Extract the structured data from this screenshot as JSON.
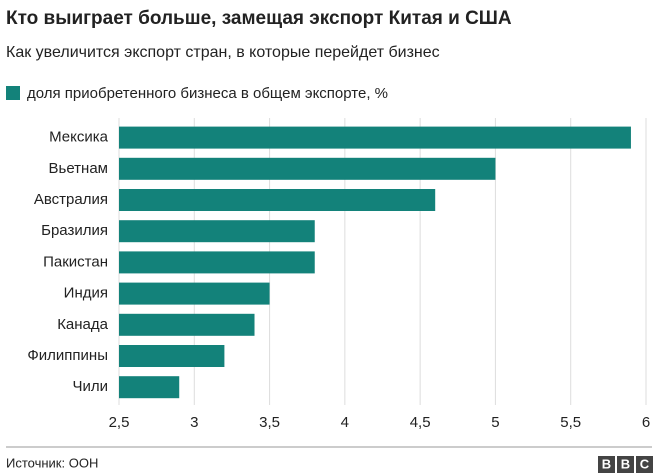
{
  "chart_data": {
    "type": "barh",
    "title": "Кто выиграет больше, замещая экспорт Китая и США",
    "subtitle": "Как увеличится экспорт стран, в которые перейдет бизнес",
    "categories": [
      "Мексика",
      "Вьетнам",
      "Австралия",
      "Бразилия",
      "Пакистан",
      "Индия",
      "Канада",
      "Филиппины",
      "Чили"
    ],
    "series": [
      {
        "name": "доля приобретенного бизнеса в общем экспорте, %",
        "color": "#13827a",
        "values": [
          5.9,
          5.0,
          4.6,
          3.8,
          3.8,
          3.5,
          3.4,
          3.2,
          2.9
        ]
      }
    ],
    "xlim": [
      2.5,
      6
    ],
    "xticks": [
      {
        "value": 2.5,
        "label": "2,5"
      },
      3,
      {
        "value": 3.5,
        "label": "3,5"
      },
      4,
      {
        "value": 4.5,
        "label": "4,5"
      },
      5,
      {
        "value": 5.5,
        "label": "5,5"
      },
      6
    ],
    "grid": true,
    "source": "Источник: ООН",
    "logo": [
      "B",
      "B",
      "C"
    ]
  }
}
